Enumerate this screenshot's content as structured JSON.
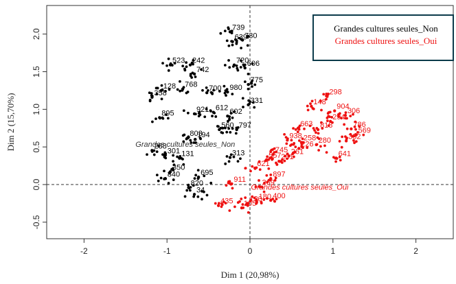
{
  "chart_data": {
    "type": "scatter",
    "xlabel": "Dim 1 (20,98%)",
    "ylabel": "Dim 2 (15,70%)",
    "xlim": [
      -2.45,
      2.45
    ],
    "ylim": [
      -0.72,
      2.38
    ],
    "x_ticks": [
      -2,
      -1,
      0,
      1,
      2
    ],
    "y_ticks": [
      -0.5,
      0.0,
      0.5,
      1.0,
      1.5,
      2.0
    ],
    "x_tick_labels": [
      "-2",
      "-1",
      "0",
      "1",
      "2"
    ],
    "y_tick_labels": [
      "-0.5",
      "0.0",
      "0.5",
      "1.0",
      "1.5",
      "2.0"
    ],
    "reference_lines": {
      "x": 0,
      "y": 0,
      "style": "dashed"
    },
    "legend": {
      "position": "top-right",
      "entries": [
        {
          "label": "Grandes cultures seules_Non",
          "color": "#000000"
        },
        {
          "label": "Grandes cultures seules_Oui",
          "color": "#ee1111"
        }
      ]
    },
    "series": [
      {
        "name": "Grandes cultures seules_Non",
        "color": "#000000",
        "centroid": {
          "x": -0.78,
          "y": 0.5,
          "label": "Grandes cultures seules_Non"
        },
        "labeled_points": [
          {
            "x": -0.24,
            "y": 2.03,
            "label": "739"
          },
          {
            "x": -0.21,
            "y": 1.9,
            "label": "639"
          },
          {
            "x": -0.09,
            "y": 1.92,
            "label": "730"
          },
          {
            "x": -0.96,
            "y": 1.59,
            "label": "523"
          },
          {
            "x": -0.72,
            "y": 1.59,
            "label": "242"
          },
          {
            "x": -0.19,
            "y": 1.59,
            "label": "720"
          },
          {
            "x": -0.06,
            "y": 1.55,
            "label": "606"
          },
          {
            "x": -0.67,
            "y": 1.47,
            "label": "742"
          },
          {
            "x": -0.02,
            "y": 1.33,
            "label": "775"
          },
          {
            "x": -1.07,
            "y": 1.25,
            "label": "128"
          },
          {
            "x": -0.81,
            "y": 1.27,
            "label": "768"
          },
          {
            "x": -1.18,
            "y": 1.16,
            "label": "358"
          },
          {
            "x": -0.52,
            "y": 1.22,
            "label": "700"
          },
          {
            "x": -0.27,
            "y": 1.23,
            "label": "980"
          },
          {
            "x": -0.02,
            "y": 1.06,
            "label": "331"
          },
          {
            "x": -0.44,
            "y": 0.96,
            "label": "612"
          },
          {
            "x": -1.09,
            "y": 0.89,
            "label": "895"
          },
          {
            "x": -0.67,
            "y": 0.94,
            "label": "921"
          },
          {
            "x": -0.27,
            "y": 0.91,
            "label": "602"
          },
          {
            "x": -0.37,
            "y": 0.73,
            "label": "560"
          },
          {
            "x": -0.66,
            "y": 0.6,
            "label": "194"
          },
          {
            "x": -0.75,
            "y": 0.62,
            "label": "803"
          },
          {
            "x": -0.16,
            "y": 0.73,
            "label": "797"
          },
          {
            "x": -1.18,
            "y": 0.45,
            "label": "288"
          },
          {
            "x": -1.02,
            "y": 0.39,
            "label": "301"
          },
          {
            "x": -0.85,
            "y": 0.35,
            "label": "131"
          },
          {
            "x": -0.24,
            "y": 0.36,
            "label": "313"
          },
          {
            "x": -0.96,
            "y": 0.17,
            "label": "350"
          },
          {
            "x": -0.62,
            "y": 0.1,
            "label": "695"
          },
          {
            "x": -1.02,
            "y": 0.08,
            "label": "840"
          },
          {
            "x": -0.74,
            "y": -0.04,
            "label": "820"
          },
          {
            "x": -0.67,
            "y": -0.13,
            "label": "34"
          }
        ]
      },
      {
        "name": "Grandes cultures seules_Oui",
        "color": "#ee1111",
        "centroid": {
          "x": 0.6,
          "y": -0.07,
          "label": "Grandes cultures seules_Oui"
        },
        "labeled_points": [
          {
            "x": 0.93,
            "y": 1.17,
            "label": "298"
          },
          {
            "x": 0.74,
            "y": 1.04,
            "label": "148"
          },
          {
            "x": 1.02,
            "y": 0.98,
            "label": "904"
          },
          {
            "x": 1.15,
            "y": 0.92,
            "label": "306"
          },
          {
            "x": 0.97,
            "y": 0.84,
            "label": "294"
          },
          {
            "x": 1.22,
            "y": 0.74,
            "label": "786"
          },
          {
            "x": 0.58,
            "y": 0.75,
            "label": "663"
          },
          {
            "x": 0.82,
            "y": 0.73,
            "label": "818"
          },
          {
            "x": 1.28,
            "y": 0.66,
            "label": "569"
          },
          {
            "x": 1.16,
            "y": 0.58,
            "label": "382"
          },
          {
            "x": 0.45,
            "y": 0.59,
            "label": "938"
          },
          {
            "x": 0.62,
            "y": 0.56,
            "label": "258"
          },
          {
            "x": 0.8,
            "y": 0.53,
            "label": "280"
          },
          {
            "x": 0.59,
            "y": 0.48,
            "label": "226"
          },
          {
            "x": 0.28,
            "y": 0.4,
            "label": "745"
          },
          {
            "x": 0.47,
            "y": 0.38,
            "label": "261"
          },
          {
            "x": 0.2,
            "y": 0.33,
            "label": "557"
          },
          {
            "x": 0.35,
            "y": 0.31,
            "label": "251"
          },
          {
            "x": 1.04,
            "y": 0.35,
            "label": "641"
          },
          {
            "x": 0.06,
            "y": 0.22,
            "label": "621"
          },
          {
            "x": 0.25,
            "y": 0.08,
            "label": "897"
          },
          {
            "x": -0.22,
            "y": 0.01,
            "label": "911"
          },
          {
            "x": 0.12,
            "y": -0.03,
            "label": "269"
          },
          {
            "x": 0.08,
            "y": -0.22,
            "label": "180"
          },
          {
            "x": -0.38,
            "y": -0.28,
            "label": "435"
          },
          {
            "x": -0.03,
            "y": -0.25,
            "label": "120"
          },
          {
            "x": 0.25,
            "y": -0.21,
            "label": "400"
          },
          {
            "x": -0.1,
            "y": -0.31,
            "label": "105"
          }
        ]
      }
    ]
  }
}
